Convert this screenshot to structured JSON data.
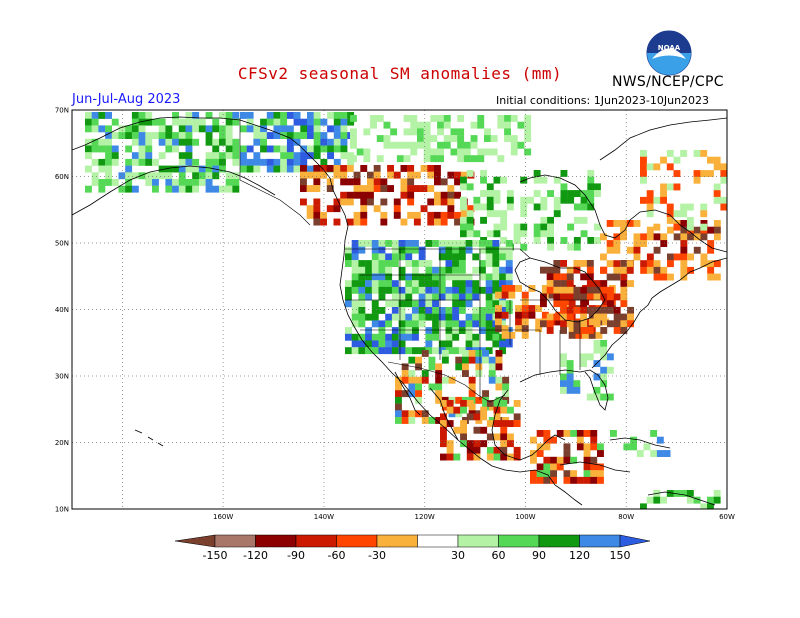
{
  "header": {
    "title": "CFSv2 seasonal SM anomalies (mm)",
    "org": "NWS/NCEP/CPC",
    "season": "Jun-Jul-Aug 2023",
    "initial_conditions": "Initial conditions: 1Jun2023-10Jun2023",
    "logo_text": "NOAA"
  },
  "map": {
    "lat_labels": [
      "70N",
      "60N",
      "50N",
      "40N",
      "30N",
      "20N",
      "10N"
    ],
    "lon_labels": [
      "160W",
      "140W",
      "120W",
      "100W",
      "80W",
      "60W"
    ],
    "grid": "dotted"
  },
  "colorbar": {
    "labels": [
      "-150",
      "-120",
      "-90",
      "-60",
      "-30",
      "30",
      "60",
      "90",
      "120",
      "150"
    ],
    "colors": {
      "lt_150": "#7b3f2e",
      "m150_m120": "#a8776a",
      "m120_m90": "#8b0000",
      "m90_m60": "#cc1a00",
      "m60_m30": "#ff4500",
      "m30_m0": "#f9b13b",
      "neutral": "#ffffff",
      "p30_p60": "#b4f2a6",
      "p60_p90": "#55d855",
      "p90_p120": "#129912",
      "p120_p150": "#3e88e6",
      "gt_150": "#2d5ce0"
    }
  }
}
